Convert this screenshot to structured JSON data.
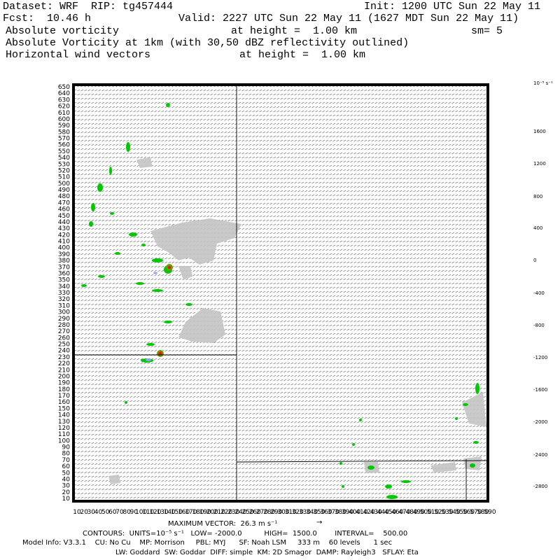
{
  "header": {
    "dataset": "Dataset: WRF  RIP: tg457444",
    "init": "Init: 1200 UTC Sun 22 May 11",
    "fcst": "Fcst:  10.46 h",
    "valid": "Valid: 2227 UTC Sun 22 May 11 (1627 MDT Sun 22 May 11)",
    "line3_left": "Absolute vorticity",
    "line3_mid": "at height =  1.00 km",
    "line3_right": "sm= 5",
    "line4": "Absolute Vorticity at 1km (with 30,50 dBZ reflectivity outlined)",
    "line5_left": "Horizontal wind vectors",
    "line5_mid": "at height =  1.00 km"
  },
  "colorbar": {
    "unit_label": "10⁻⁵ s⁻¹",
    "labels": [
      "1600",
      "1200",
      "800",
      "400",
      "0",
      "-400",
      "-800",
      "-1200",
      "-1600",
      "-2000",
      "-2400",
      "-2800"
    ],
    "colors": [
      "#800080",
      "#b4006e",
      "#e8141e",
      "#ff5a00",
      "#ffa500",
      "#d2d200",
      "#6e9b00",
      "#009600",
      "#00dc00",
      "#ffffff",
      "#ffffff",
      "#ffffff",
      "#ffffff",
      "#3cdc3c",
      "#a0f0b4",
      "#b4c8f0",
      "#96a0ff",
      "#5064ff",
      "#1e1eff",
      "#0000c8",
      "#00008c",
      "#000064",
      "#0a0a50"
    ]
  },
  "footer": {
    "max_vector": "MAXIMUM VECTOR:  26.3 m s⁻¹",
    "contours": "CONTOURS:  UNITS=10⁻⁵ s⁻¹   LOW= -2000.0          HIGH=  1500.0        INTERVAL=    500.00",
    "model_info": "Model Info: V3.3.1    CU: No Cu    MP: Morrison     PBL: MYJ      SF: Noah LSM     333 m    60 levels      1 sec",
    "model_info2": "LW: Goddard  SW: Goddar  DIFF: simple  KM: 2D Smagor  DAMP: Rayleigh3   SFLAY: Eta"
  },
  "axes": {
    "y_start": 10,
    "y_end": 650,
    "y_step": 10,
    "x_start": 10,
    "x_end": 590,
    "x_step": 10
  }
}
